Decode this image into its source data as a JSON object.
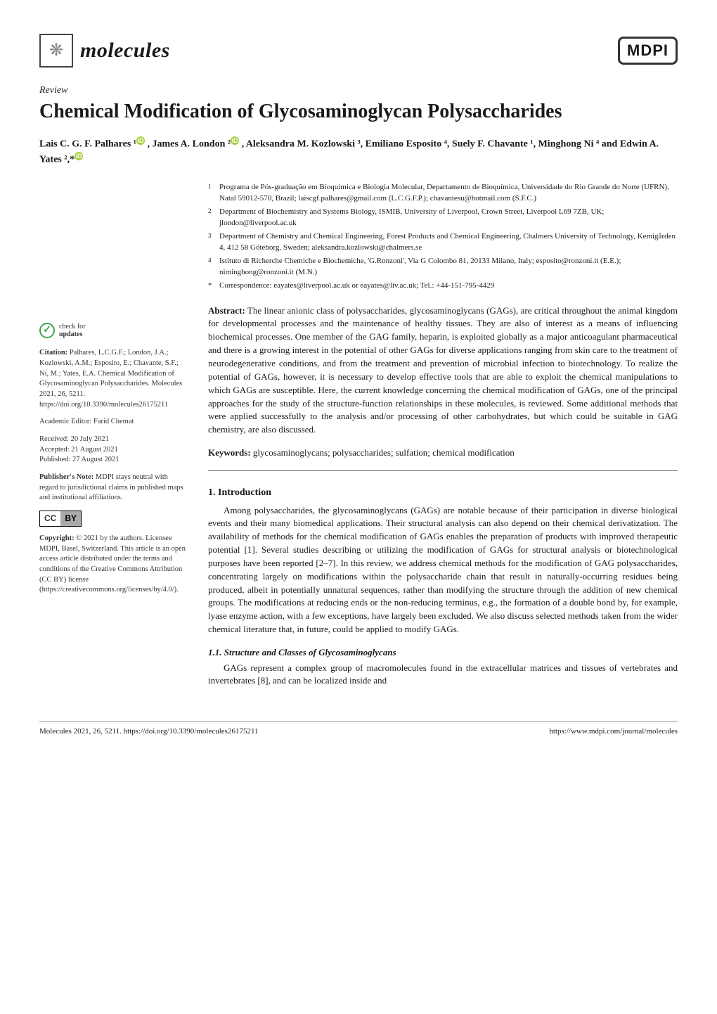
{
  "header": {
    "journal_name": "molecules",
    "publisher_logo": "MDPI"
  },
  "article": {
    "type": "Review",
    "title": "Chemical Modification of Glycosaminoglycan Polysaccharides",
    "authors_line1": "Lais C. G. F. Palhares ¹",
    "authors_line2": ", James A. London ²",
    "authors_line3": ", Aleksandra M. Kozlowski ³, Emiliano Esposito ⁴, Suely F. Chavante ¹, Minghong Ni ⁴ and Edwin A. Yates ²,*"
  },
  "affiliations": [
    {
      "num": "1",
      "text": "Programa de Pós-graduação em Bioquímica e Biologia Molecular, Departamento de Bioquímica, Universidade do Rio Grande do Norte (UFRN), Natal 59012-570, Brazil; laiscgf.palhares@gmail.com (L.C.G.F.P.); chavantesu@hotmail.com (S.F.C.)"
    },
    {
      "num": "2",
      "text": "Department of Biochemistry and Systems Biology, ISMIB, University of Liverpool, Crown Street, Liverpool L69 7ZB, UK; jlondon@liverpool.ac.uk"
    },
    {
      "num": "3",
      "text": "Department of Chemistry and Chemical Engineering, Forest Products and Chemical Engineering, Chalmers University of Technology, Kemigården 4, 412 58 Göteborg, Sweden; aleksandra.kozlowski@chalmers.se"
    },
    {
      "num": "4",
      "text": "Istituto di Richerche Chemiche e Biochemiche, 'G.Ronzoni', Via G Colombo 81, 20133 Milano, Italy; esposito@ronzoni.it (E.E.); niminghong@ronzoni.it (M.N.)"
    },
    {
      "num": "*",
      "text": "Correspondence: eayates@liverpool.ac.uk or eayates@liv.ac.uk; Tel.: +44-151-795-4429"
    }
  ],
  "abstract": {
    "label": "Abstract:",
    "text": "The linear anionic class of polysaccharides, glycosaminoglycans (GAGs), are critical throughout the animal kingdom for developmental processes and the maintenance of healthy tissues. They are also of interest as a means of influencing biochemical processes. One member of the GAG family, heparin, is exploited globally as a major anticoagulant pharmaceutical and there is a growing interest in the potential of other GAGs for diverse applications ranging from skin care to the treatment of neurodegenerative conditions, and from the treatment and prevention of microbial infection to biotechnology. To realize the potential of GAGs, however, it is necessary to develop effective tools that are able to exploit the chemical manipulations to which GAGs are susceptible. Here, the current knowledge concerning the chemical modification of GAGs, one of the principal approaches for the study of the structure-function relationships in these molecules, is reviewed. Some additional methods that were applied successfully to the analysis and/or processing of other carbohydrates, but which could be suitable in GAG chemistry, are also discussed."
  },
  "keywords": {
    "label": "Keywords:",
    "text": "glycosaminoglycans; polysaccharides; sulfation; chemical modification"
  },
  "sidebar": {
    "check_for": "check for",
    "updates": "updates",
    "citation_label": "Citation:",
    "citation_text": "Palhares, L.C.G.F.; London, J.A.; Kozlowski, A.M.; Esposito, E.; Chavante, S.F.; Ni, M.; Yates, E.A. Chemical Modification of Glycosaminoglycan Polysaccharides. Molecules 2021, 26, 5211. https://doi.org/10.3390/molecules26175211",
    "academic_editor_label": "Academic Editor:",
    "academic_editor": "Farid Chemat",
    "received": "Received: 20 July 2021",
    "accepted": "Accepted: 21 August 2021",
    "published": "Published: 27 August 2021",
    "publishers_note_label": "Publisher's Note:",
    "publishers_note": "MDPI stays neutral with regard to jurisdictional claims in published maps and institutional affiliations.",
    "cc": "CC",
    "by": "BY",
    "copyright_label": "Copyright:",
    "copyright": "© 2021 by the authors. Licensee MDPI, Basel, Switzerland. This article is an open access article distributed under the terms and conditions of the Creative Commons Attribution (CC BY) license (https://creativecommons.org/licenses/by/4.0/)."
  },
  "sections": {
    "introduction_head": "1. Introduction",
    "introduction_body": "Among polysaccharides, the glycosaminoglycans (GAGs) are notable because of their participation in diverse biological events and their many biomedical applications. Their structural analysis can also depend on their chemical derivatization. The availability of methods for the chemical modification of GAGs enables the preparation of products with improved therapeutic potential [1]. Several studies describing or utilizing the modification of GAGs for structural analysis or biotechnological purposes have been reported [2–7]. In this review, we address chemical methods for the modification of GAG polysaccharides, concentrating largely on modifications within the polysaccharide chain that result in naturally-occurring residues being produced, albeit in potentially unnatural sequences, rather than modifying the structure through the addition of new chemical groups. The modifications at reducing ends or the non-reducing terminus, e.g., the formation of a double bond by, for example, lyase enzyme action, with a few exceptions, have largely been excluded. We also discuss selected methods taken from the wider chemical literature that, in future, could be applied to modify GAGs.",
    "sub_1_1_head": "1.1. Structure and Classes of Glycosaminoglycans",
    "sub_1_1_body": "GAGs represent a complex group of macromolecules found in the extracellular matrices and tissues of vertebrates and invertebrates [8], and can be localized inside and"
  },
  "footer": {
    "left": "Molecules 2021, 26, 5211. https://doi.org/10.3390/molecules26175211",
    "right": "https://www.mdpi.com/journal/molecules"
  }
}
